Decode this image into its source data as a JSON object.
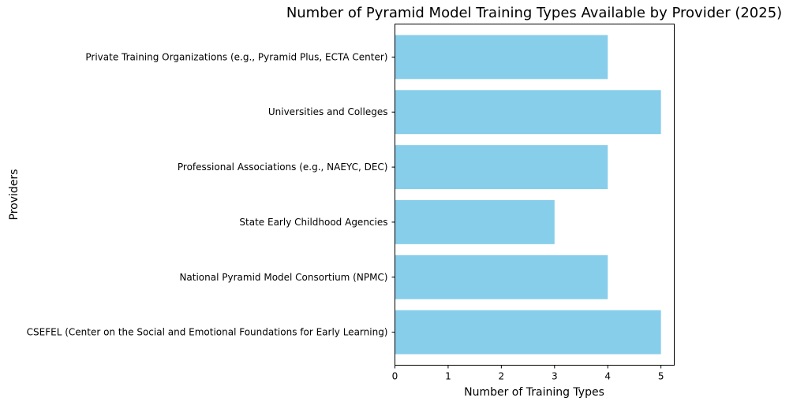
{
  "chart_data": {
    "type": "bar",
    "orientation": "horizontal",
    "title": "Number of Pyramid Model Training Types Available by Provider (2025)",
    "xlabel": "Number of Training Types",
    "ylabel": "Providers",
    "categories": [
      "CSEFEL (Center on the Social and Emotional Foundations for Early Learning)",
      "National Pyramid Model Consortium (NPMC)",
      "State Early Childhood Agencies",
      "Professional Associations (e.g., NAEYC, DEC)",
      "Universities and Colleges",
      "Private Training Organizations (e.g., Pyramid Plus, ECTA Center)"
    ],
    "values": [
      5,
      4,
      3,
      4,
      5,
      4
    ],
    "xlim": [
      0,
      5.25
    ],
    "xticks": [
      0,
      1,
      2,
      3,
      4,
      5
    ],
    "bar_color": "#87CEEB",
    "grid": false,
    "legend": "none"
  }
}
